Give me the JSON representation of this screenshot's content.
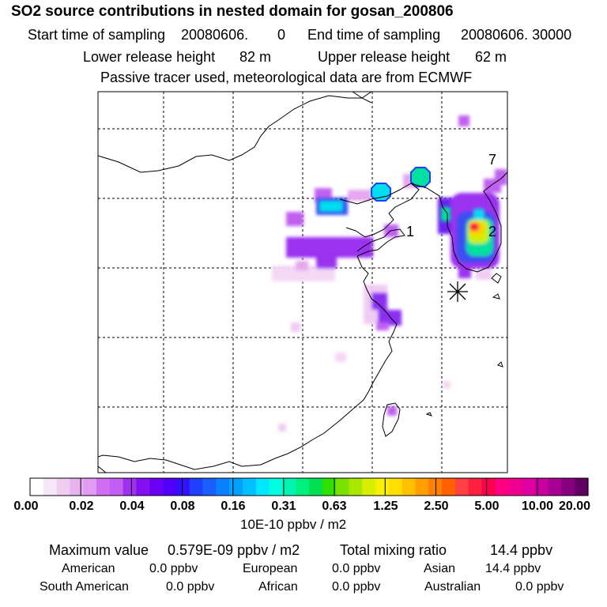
{
  "title": "SO2 source contributions in nested domain for gosan_200806",
  "header": {
    "start_label": "Start time of sampling",
    "start_value": "20080606.",
    "start_hhmmss": "0",
    "end_label": "End time of sampling",
    "end_value": "20080606. 30000",
    "lower_label": "Lower release height",
    "lower_value": "82 m",
    "upper_label": "Upper release height",
    "upper_value": "62 m",
    "note": "Passive tracer used, meteorological data are from ECMWF"
  },
  "map": {
    "region": "East Asia nested domain",
    "receptor_symbol": "asterisk",
    "grid_style": "dashed",
    "labels": [
      "7",
      "1",
      "2"
    ],
    "plume_colors": [
      "#f4d8f4",
      "#e6a8ee",
      "#c060f0",
      "#9b30f0",
      "#6a20f0",
      "#3a50f0",
      "#00ddee",
      "#00e0a0",
      "#30e000",
      "#d0f000",
      "#ffd000",
      "#ff7000",
      "#ff1040",
      "#ff0099"
    ]
  },
  "colorbar": {
    "colors": [
      "#ffffff",
      "#f7e6f7",
      "#efcdef",
      "#e6b3ef",
      "#e09cf0",
      "#cf6ef1",
      "#c15ef3",
      "#a030f0",
      "#8410f0",
      "#6a00f4",
      "#5000f8",
      "#3410ff",
      "#2040ff",
      "#1a60ff",
      "#0a80ff",
      "#00a0ff",
      "#00c0ff",
      "#00e8ff",
      "#00ffe0",
      "#00f5b0",
      "#00f080",
      "#00e050",
      "#30e000",
      "#7ae000",
      "#a8e800",
      "#d8f000",
      "#f8f000",
      "#ffe000",
      "#ffc000",
      "#ffa000",
      "#ff8000",
      "#ff6000",
      "#ff4040",
      "#ff2040",
      "#ff0050",
      "#ff0080",
      "#f00090",
      "#e000a0",
      "#c800a0",
      "#a80090",
      "#880080",
      "#600060"
    ],
    "labels": [
      "0.00",
      "0.02",
      "0.04",
      "0.08",
      "0.16",
      "0.31",
      "0.63",
      "1.25",
      "2.50",
      "5.00",
      "10.00",
      "20.00"
    ],
    "unit": "10E-10 ppbv / m2"
  },
  "stats": {
    "max_label": "Maximum value",
    "max_value": "0.579E-09 ppbv / m2",
    "total_label": "Total mixing ratio",
    "total_value": "14.4 ppbv",
    "regions": [
      {
        "name": "American",
        "value": "0.0 ppbv"
      },
      {
        "name": "European",
        "value": "0.0 ppbv"
      },
      {
        "name": "Asian",
        "value": "14.4 ppbv"
      },
      {
        "name": "South American",
        "value": "0.0 ppbv"
      },
      {
        "name": "African",
        "value": "0.0 ppbv"
      },
      {
        "name": "Australian",
        "value": "0.0 ppbv"
      }
    ]
  }
}
